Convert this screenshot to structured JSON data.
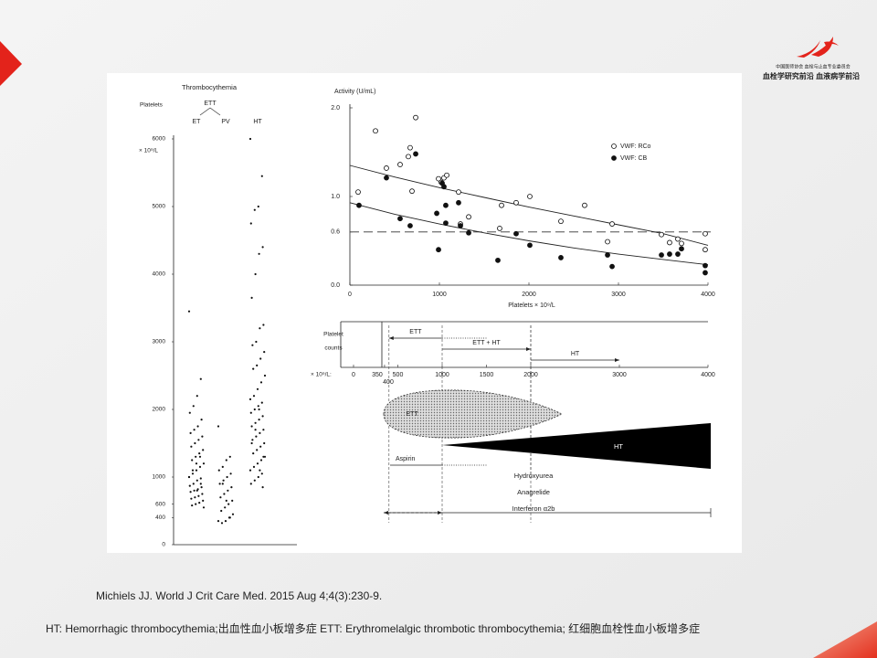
{
  "slide": {
    "logo_lines": [
      "中国医师协会 血栓与止血专业委员会",
      "血栓学研究前沿 血液病学前沿"
    ],
    "citation": "Michiels JJ. World J Crit Care Med. 2015 Aug 4;4(3):230-9.",
    "footnote": "HT: Hemorrhagic thrombocythemia;出血性血小板增多症 ETT: Erythromelalgic thrombotic thrombocythemia; 红细胞血栓性血小板增多症"
  },
  "figure": {
    "strip_plot": {
      "title": "Thrombocythemia",
      "y_label": "Platelets",
      "unit_label": "× 10⁹/L",
      "group_label": "ETT",
      "ylim": [
        0,
        6000
      ],
      "yticks": [
        0,
        400,
        600,
        1000,
        2000,
        3000,
        4000,
        5000,
        6000
      ],
      "series": [
        {
          "name": "ET",
          "values": [
            3450,
            2450,
            2200,
            2050,
            1950,
            1850,
            1750,
            1700,
            1650,
            1600,
            1550,
            1500,
            1450,
            1400,
            1350,
            1300,
            1250,
            1200,
            1150,
            1100,
            1050,
            1000,
            980,
            950,
            900,
            870,
            850,
            820,
            800,
            780,
            750,
            720,
            700,
            680,
            650,
            620,
            600,
            580,
            550,
            1300,
            1200,
            1100,
            1000,
            900,
            800
          ]
        },
        {
          "name": "PV",
          "values": [
            1750,
            1300,
            1250,
            1150,
            1100,
            1050,
            1000,
            950,
            900,
            850,
            800,
            750,
            700,
            650,
            600,
            550,
            500,
            450,
            400,
            350,
            320,
            350,
            400,
            650,
            900
          ]
        },
        {
          "name": "HT",
          "values": [
            6000,
            5450,
            5000,
            4950,
            4750,
            4400,
            4300,
            4000,
            3650,
            3250,
            3200,
            3000,
            2950,
            2850,
            2750,
            2650,
            2600,
            2500,
            2400,
            2300,
            2200,
            2150,
            2100,
            2050,
            2000,
            1950,
            1900,
            1850,
            1800,
            1750,
            1700,
            1650,
            1600,
            1550,
            1500,
            1450,
            1400,
            1350,
            1300,
            1250,
            1200,
            1150,
            1100,
            1050,
            1000,
            950,
            900,
            850,
            2000,
            1700,
            1500,
            1300,
            1100
          ]
        }
      ]
    },
    "activity_plot": {
      "y_label": "Activity (U/mL)",
      "x_label": "Platelets × 10⁹/L",
      "xlim": [
        0,
        4000
      ],
      "xticks": [
        0,
        1000,
        2000,
        3000,
        4000
      ],
      "ylim": [
        0,
        2.0
      ],
      "yticks": [
        {
          "value": 0,
          "label": "0.0"
        },
        0.6,
        {
          "value": 1,
          "label": "1.0"
        },
        {
          "value": 2,
          "label": "2.0"
        }
      ],
      "reference_line": 0.6,
      "series": [
        {
          "name": "VWF: RCo",
          "marker": "open",
          "x": [
            92,
            286,
            408,
            561,
            653,
            673,
            694,
            735,
            990,
            1020,
            1051,
            1082,
            1214,
            1235,
            1327,
            1673,
            1694,
            1857,
            2010,
            2357,
            2622,
            2878,
            2929,
            3480,
            3571,
            3663,
            3704,
            3969,
            3969
          ],
          "y": [
            1.05,
            1.74,
            1.32,
            1.36,
            1.45,
            1.55,
            1.06,
            1.89,
            1.2,
            1.16,
            1.21,
            1.24,
            1.05,
            0.69,
            0.77,
            0.64,
            0.9,
            0.93,
            1.0,
            0.72,
            0.9,
            0.49,
            0.69,
            0.57,
            0.48,
            0.52,
            0.47,
            0.58,
            0.4
          ]
        },
        {
          "name": "VWF: CB",
          "marker": "filled",
          "x": [
            102,
            408,
            561,
            673,
            735,
            970,
            990,
            1031,
            1051,
            1071,
            1071,
            1214,
            1235,
            1327,
            1653,
            1857,
            2010,
            2357,
            2878,
            2929,
            3480,
            3571,
            3663,
            3704,
            3969,
            3969
          ],
          "y": [
            0.9,
            1.21,
            0.75,
            0.67,
            1.48,
            0.81,
            0.4,
            1.15,
            1.11,
            0.9,
            0.7,
            0.93,
            0.67,
            0.59,
            0.28,
            0.58,
            0.45,
            0.31,
            0.34,
            0.21,
            0.34,
            0.35,
            0.35,
            0.41,
            0.22,
            0.14
          ]
        }
      ],
      "trends": [
        {
          "x": [
            0,
            500,
            1000,
            1500,
            2000,
            2500,
            3000,
            3500,
            4000
          ],
          "y": [
            1.35,
            1.22,
            1.1,
            0.99,
            0.88,
            0.78,
            0.68,
            0.58,
            0.45
          ]
        },
        {
          "x": [
            0,
            500,
            1000,
            1500,
            2000,
            2500,
            3000,
            3500,
            4000
          ],
          "y": [
            0.93,
            0.8,
            0.69,
            0.59,
            0.5,
            0.42,
            0.35,
            0.29,
            0.23
          ]
        }
      ]
    },
    "range_panel": {
      "row_label": [
        "Platelet",
        "counts"
      ],
      "unit_label": "× 10⁹/L:",
      "xlim": [
        0,
        4000
      ],
      "xticks": [
        0,
        350,
        500,
        1000,
        1500,
        2000,
        3000,
        4000
      ],
      "ranges": [
        {
          "label": "ETT",
          "from": 400,
          "to": 1000,
          "dotted_to": 1500
        },
        {
          "label": "ETT + HT",
          "from": 1000,
          "to": 2000
        },
        {
          "label": "HT",
          "from": 2000,
          "to": 3000
        }
      ]
    },
    "therapy_panel": {
      "start_label": "400",
      "disease_labels": [
        "ETT",
        "HT"
      ],
      "aspirin": "Aspirin",
      "drugs": [
        "Hydroxyurea",
        "Anagrelide",
        "Interferon α2b"
      ]
    }
  }
}
